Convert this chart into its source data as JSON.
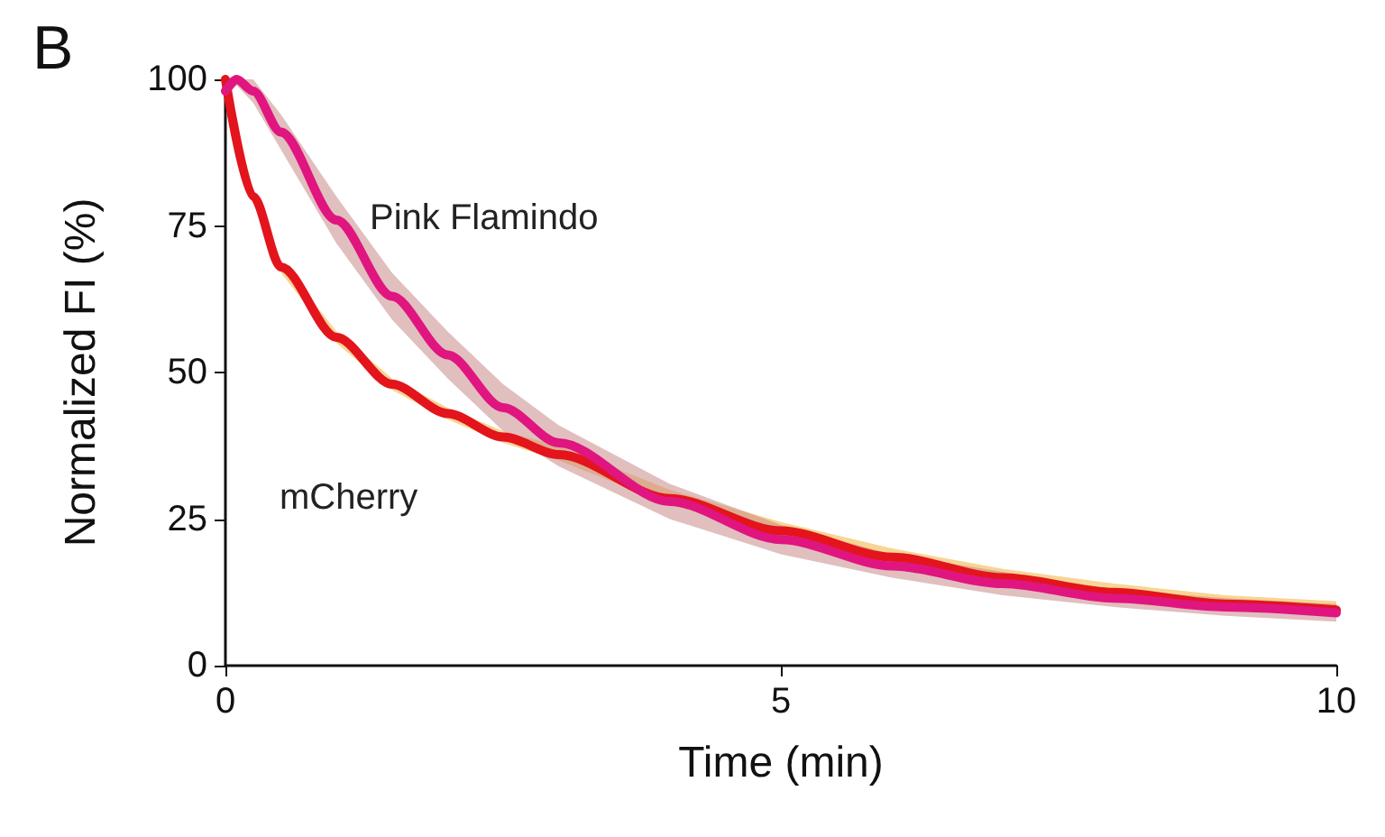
{
  "chart_data": {
    "type": "line",
    "xlabel": "Time (min)",
    "ylabel": "Normalized FI (%)",
    "xlim": [
      0,
      10
    ],
    "xticks": [
      0,
      5,
      10
    ],
    "ylim": [
      0,
      100
    ],
    "yticks": [
      0,
      25,
      50,
      75,
      100
    ],
    "grid": false,
    "legend": false,
    "marker": "none",
    "line_style": "solid",
    "annotations": [
      "B"
    ],
    "series": [
      {
        "name": "mCherry",
        "color": "#e3141c",
        "x": [
          0,
          0.25,
          0.5,
          1,
          1.5,
          2,
          2.5,
          3,
          4,
          5,
          6,
          7,
          8,
          9,
          10
        ],
        "values": [
          100,
          80,
          68,
          56,
          48,
          43,
          39,
          36,
          28.5,
          23,
          18.5,
          15,
          12.5,
          10.5,
          9.5
        ],
        "lower": [
          99,
          79,
          67,
          55,
          47,
          42,
          38,
          35,
          27.5,
          22,
          17.5,
          14,
          11.5,
          9.5,
          8.5
        ],
        "upper": [
          100,
          81,
          69,
          57,
          49,
          44,
          40,
          37.5,
          30,
          24.5,
          20,
          16.5,
          14,
          12,
          11
        ]
      },
      {
        "name": "Pink Flamindo",
        "color": "#e0157f",
        "x": [
          0,
          0.1,
          0.25,
          0.5,
          1,
          1.5,
          2,
          2.5,
          3,
          4,
          5,
          6,
          7,
          8,
          9,
          10
        ],
        "values": [
          98,
          100,
          98,
          91,
          76,
          63,
          53,
          44,
          38,
          28,
          21.5,
          17,
          14,
          11.5,
          10,
          9
        ],
        "lower": [
          97,
          99,
          96,
          88,
          72,
          59,
          49,
          40,
          34,
          25,
          19,
          15,
          12,
          10,
          8.5,
          7.5
        ],
        "upper": [
          99,
          100,
          100,
          94,
          80,
          67,
          57,
          48,
          41,
          31,
          24,
          19,
          16,
          13,
          11.5,
          10.5
        ]
      }
    ]
  }
}
